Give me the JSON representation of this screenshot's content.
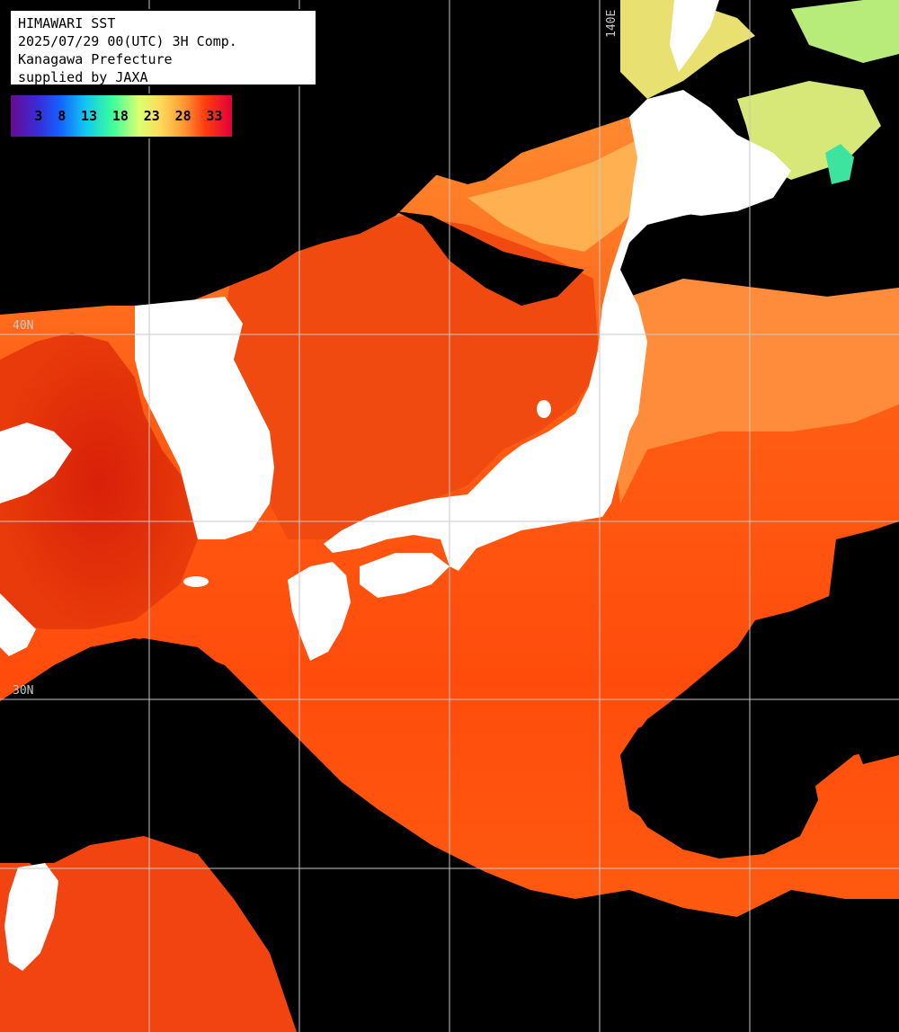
{
  "title_box": {
    "line1": "HIMAWARI SST",
    "line2": "2025/07/29 00(UTC) 3H Comp.",
    "line3": "Kanagawa Prefecture",
    "line4": "supplied by JAXA"
  },
  "legend": {
    "ticks": [
      "3",
      "8",
      "13",
      "18",
      "23",
      "28",
      "33"
    ],
    "colors": [
      "#6a0a8f",
      "#3b2bd6",
      "#1560ff",
      "#10c8f0",
      "#3cff9a",
      "#dcff70",
      "#ffd85a",
      "#ff9a36",
      "#ff3c10",
      "#e0003a"
    ]
  },
  "grid": {
    "lat_label_40": "40N",
    "lat_label_30": "30N",
    "lon_label_140": "140E"
  },
  "colors": {
    "land": "#ffffff",
    "cloud": "#000000",
    "sea_warm": "#ff5a10",
    "sea_hot": "#e82e08",
    "sea_mild": "#ffa040",
    "sea_cool": "#d8e870",
    "grid_line": "#c8c8c8"
  }
}
